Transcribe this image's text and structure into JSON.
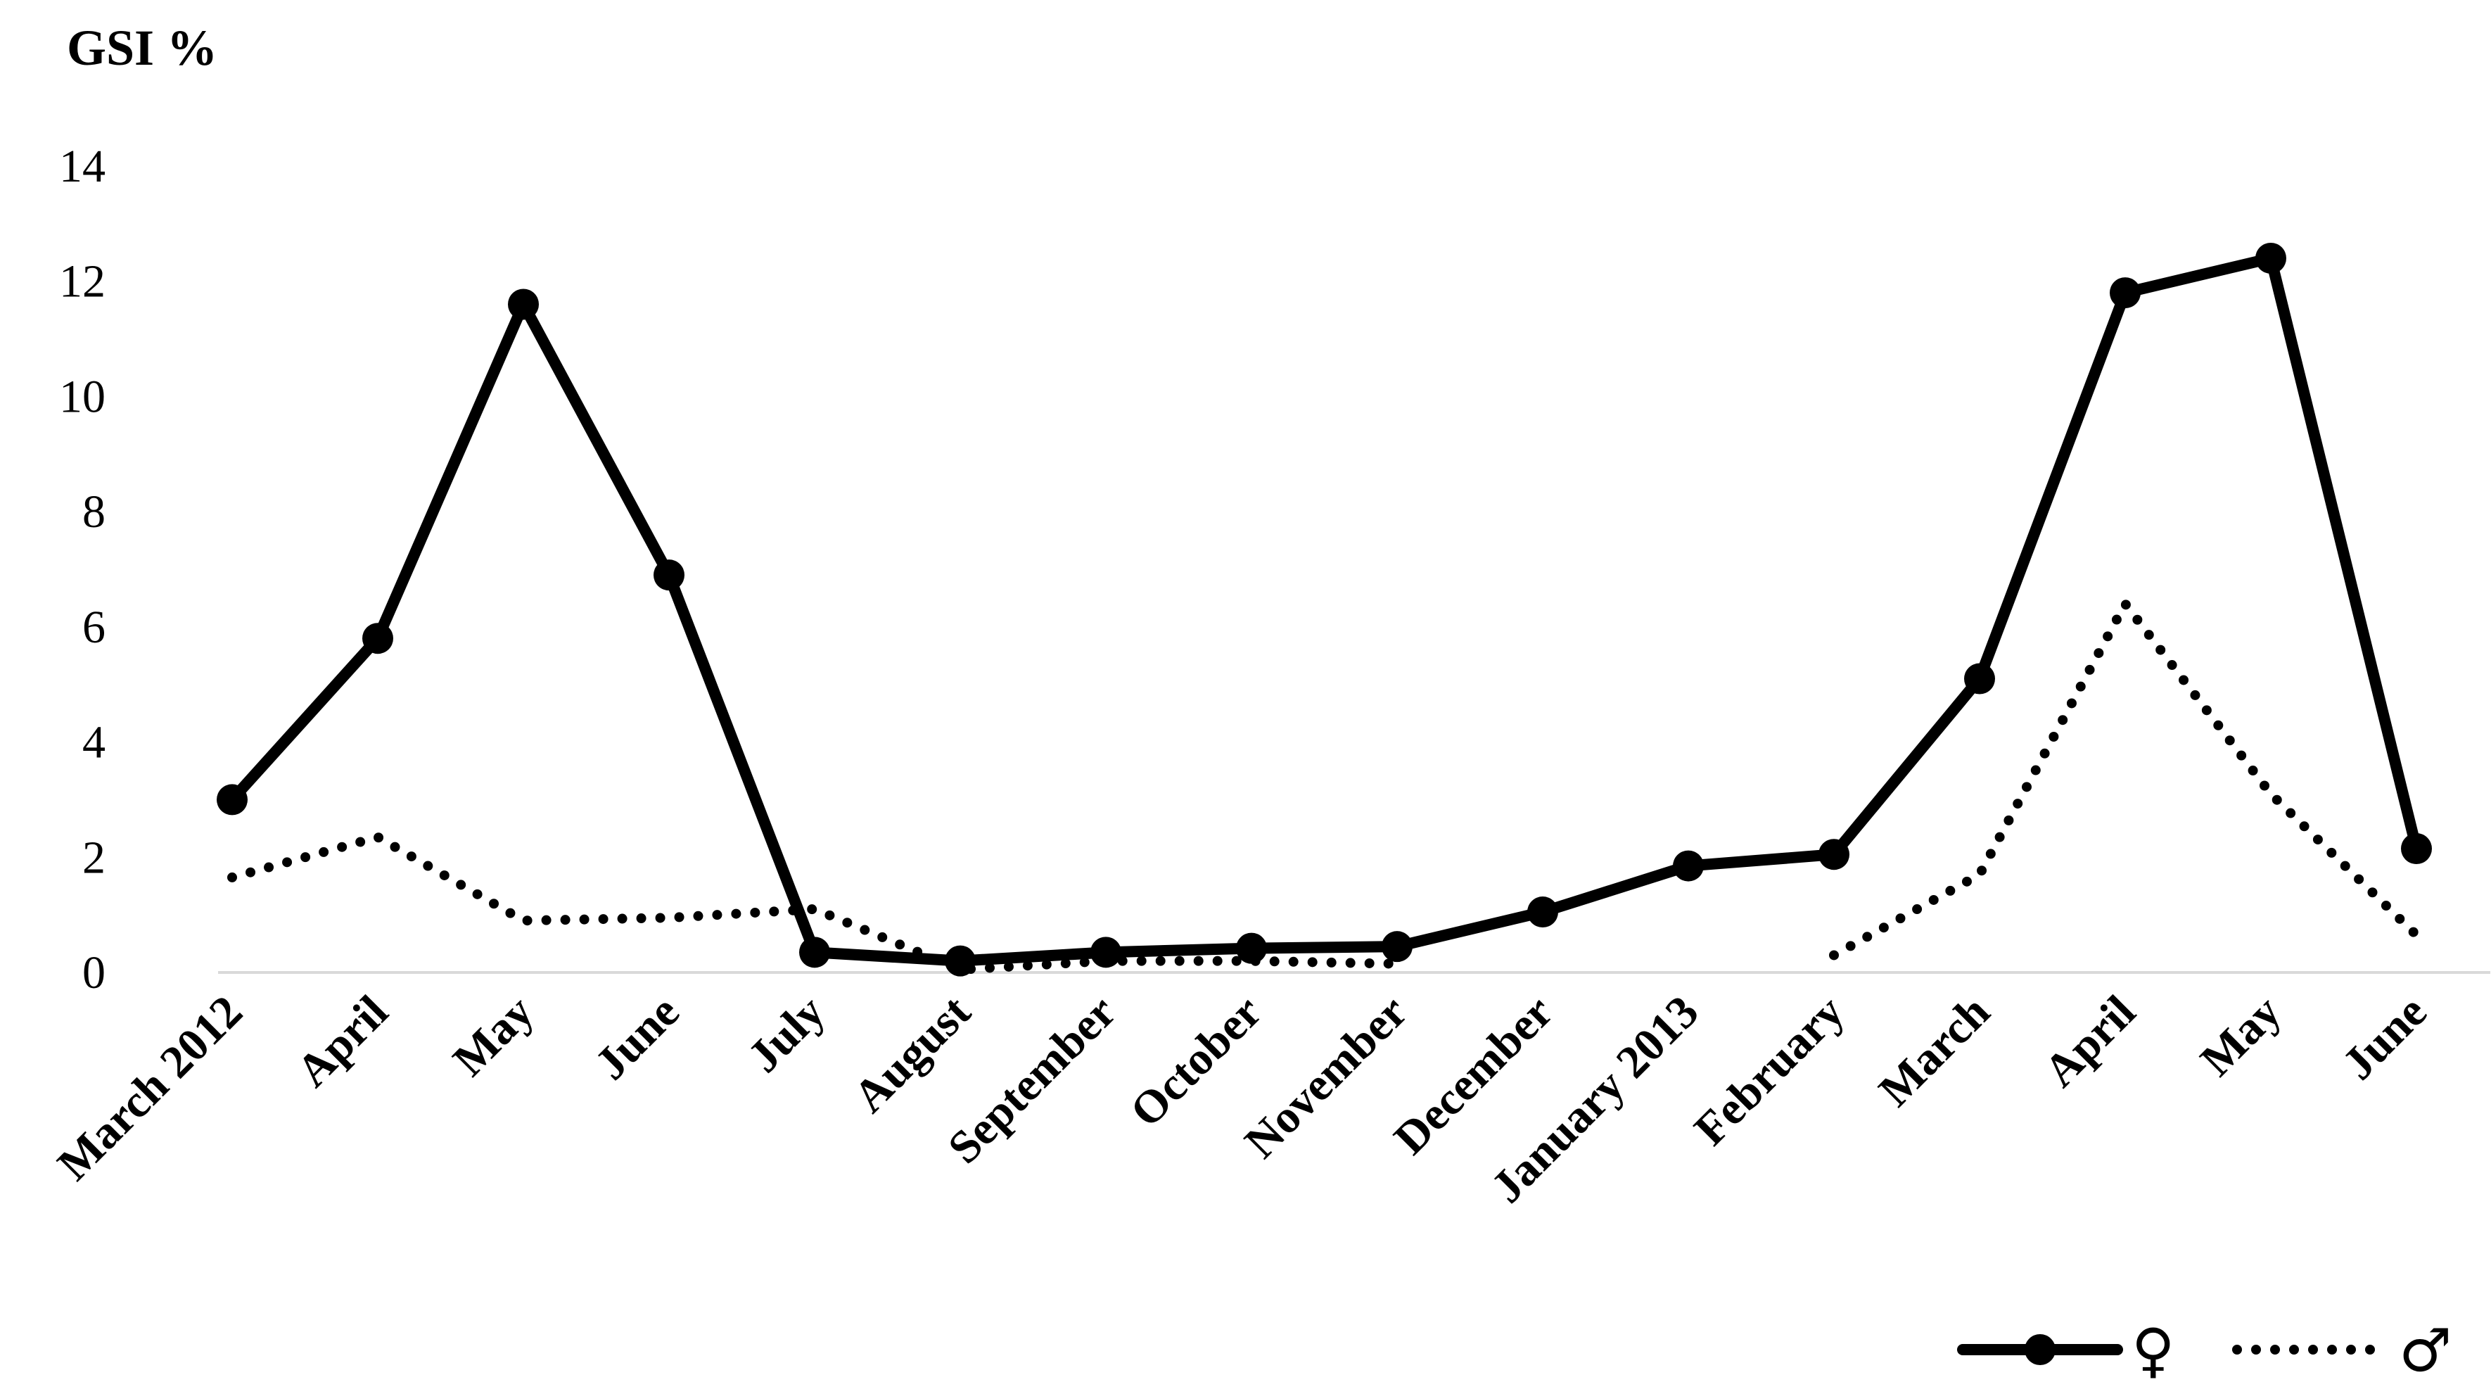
{
  "chart_data": {
    "type": "line",
    "title": "",
    "ylabel": "GSI %",
    "xlabel": "",
    "ylim": [
      0,
      14
    ],
    "yticks": [
      0,
      2,
      4,
      6,
      8,
      10,
      12,
      14
    ],
    "grid": false,
    "legend_position": "bottom-right",
    "categories": [
      "March 2012",
      "April",
      "May",
      "June",
      "July",
      "August",
      "September",
      "October",
      "November",
      "December",
      "January 2013",
      "February",
      "March",
      "April",
      "May",
      "June"
    ],
    "series": [
      {
        "name": "♀",
        "style": "solid-with-markers",
        "color": "#000000",
        "values": [
          3.0,
          5.8,
          11.6,
          6.9,
          0.35,
          0.2,
          0.35,
          0.42,
          0.45,
          1.05,
          1.85,
          2.05,
          5.1,
          11.8,
          12.4,
          2.15
        ]
      },
      {
        "name": "♂",
        "style": "dotted",
        "color": "#000000",
        "values": [
          1.65,
          2.35,
          0.9,
          0.95,
          1.1,
          0.05,
          0.2,
          0.2,
          0.15,
          null,
          null,
          0.3,
          1.7,
          6.4,
          3.1,
          0.65
        ]
      }
    ]
  }
}
